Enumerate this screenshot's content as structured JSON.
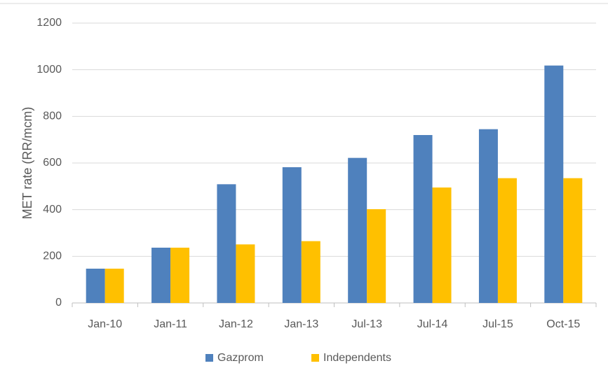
{
  "chart_data": {
    "type": "bar",
    "y_label": "MET rate (RR/mcm)",
    "categories": [
      "Jan-10",
      "Jan-11",
      "Jan-12",
      "Jan-13",
      "Jul-13",
      "Jul-14",
      "Jul-15",
      "Oct-15"
    ],
    "series": [
      {
        "name": "Gazprom",
        "color": "#4f81bd",
        "values": [
          147,
          237,
          509,
          582,
          622,
          720,
          745,
          1018
        ]
      },
      {
        "name": "Independents",
        "color": "#ffc000",
        "values": [
          147,
          237,
          251,
          265,
          402,
          495,
          535,
          535
        ]
      }
    ],
    "ylim": [
      0,
      1200
    ],
    "yticks": [
      0,
      200,
      400,
      600,
      800,
      1000,
      1200
    ],
    "grid": true,
    "legend": "bottom"
  }
}
